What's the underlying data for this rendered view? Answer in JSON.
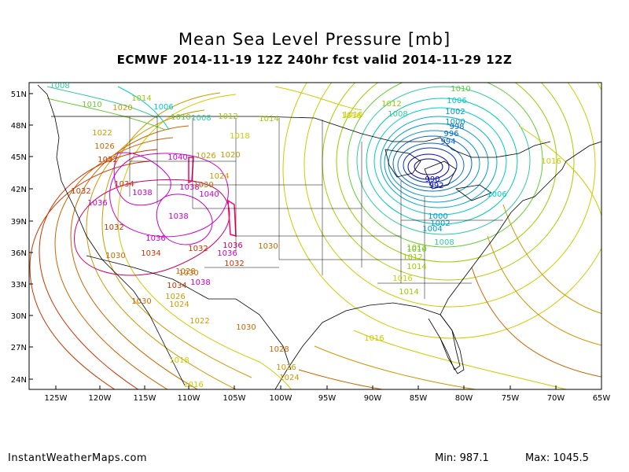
{
  "title": "Mean Sea Level Pressure [mb]",
  "subtitle": "ECMWF 2014-11-19 12Z 240hr fcst valid 2014-11-29 12Z",
  "footer": {
    "site": "InstantWeatherMaps.com",
    "min_label": "Min:",
    "min_value": "987.1",
    "max_label": "Max:",
    "max_value": "1045.5"
  },
  "axes": {
    "lat_ticks": [
      "51N",
      "48N",
      "45N",
      "42N",
      "39N",
      "36N",
      "33N",
      "30N",
      "27N",
      "24N"
    ],
    "lon_ticks": [
      "125W",
      "120W",
      "115W",
      "110W",
      "105W",
      "100W",
      "95W",
      "90W",
      "85W",
      "80W",
      "75W",
      "70W",
      "65W"
    ]
  },
  "contour_labels": [
    {
      "text": "1008",
      "color": "#33cc99"
    },
    {
      "text": "1010",
      "color": "#66cc33"
    },
    {
      "text": "1014",
      "color": "#99cc00"
    },
    {
      "text": "1020",
      "color": "#cc9900"
    },
    {
      "text": "1006",
      "color": "#00cccc"
    },
    {
      "text": "1008",
      "color": "#33cc99"
    },
    {
      "text": "1010",
      "color": "#66cc33"
    },
    {
      "text": "1012",
      "color": "#99cc00"
    },
    {
      "text": "1014",
      "color": "#99cc00"
    },
    {
      "text": "1016",
      "color": "#cccc00"
    },
    {
      "text": "1022",
      "color": "#cc9900"
    },
    {
      "text": "1026",
      "color": "#cc6600"
    },
    {
      "text": "1032",
      "color": "#cc3300"
    },
    {
      "text": "1040",
      "color": "#cc00cc"
    },
    {
      "text": "1026",
      "color": "#cc9900"
    },
    {
      "text": "1020",
      "color": "#cc9900"
    },
    {
      "text": "1018",
      "color": "#cccc00"
    },
    {
      "text": "1024",
      "color": "#cc9900"
    },
    {
      "text": "1034",
      "color": "#cc3300"
    },
    {
      "text": "1032",
      "color": "#cc3300"
    },
    {
      "text": "1038",
      "color": "#cc00cc"
    },
    {
      "text": "1036",
      "color": "#cc00cc"
    },
    {
      "text": "1038",
      "color": "#cc00cc"
    },
    {
      "text": "1030",
      "color": "#cc6600"
    },
    {
      "text": "1040",
      "color": "#cc00cc"
    },
    {
      "text": "1036",
      "color": "#cc0066"
    },
    {
      "text": "1032",
      "color": "#cc3300"
    },
    {
      "text": "1038",
      "color": "#cc00cc"
    },
    {
      "text": "1036",
      "color": "#cc00cc"
    },
    {
      "text": "1032",
      "color": "#cc3300"
    },
    {
      "text": "1030",
      "color": "#cc6600"
    },
    {
      "text": "1034",
      "color": "#cc3300"
    },
    {
      "text": "1030",
      "color": "#cc6600"
    },
    {
      "text": "1036",
      "color": "#cc00cc"
    },
    {
      "text": "1032",
      "color": "#cc3300"
    },
    {
      "text": "1030",
      "color": "#cc6600"
    },
    {
      "text": "1038",
      "color": "#cc00cc"
    },
    {
      "text": "1034",
      "color": "#cc3300"
    },
    {
      "text": "1028",
      "color": "#cc6600"
    },
    {
      "text": "1030",
      "color": "#cc6600"
    },
    {
      "text": "1026",
      "color": "#cc9900"
    },
    {
      "text": "1024",
      "color": "#cc9900"
    },
    {
      "text": "1022",
      "color": "#cc9900"
    },
    {
      "text": "1030",
      "color": "#cc6600"
    },
    {
      "text": "1028",
      "color": "#cc6600"
    },
    {
      "text": "1026",
      "color": "#cc9900"
    },
    {
      "text": "1024",
      "color": "#cc9900"
    },
    {
      "text": "1018",
      "color": "#cccc00"
    },
    {
      "text": "1016",
      "color": "#cccc00"
    },
    {
      "text": "1016",
      "color": "#cccc00"
    },
    {
      "text": "1016",
      "color": "#cccc00"
    },
    {
      "text": "1014",
      "color": "#99cc00"
    },
    {
      "text": "1012",
      "color": "#99cc00"
    },
    {
      "text": "1008",
      "color": "#33cc99"
    },
    {
      "text": "1012",
      "color": "#99cc00"
    },
    {
      "text": "1010",
      "color": "#66cc33"
    },
    {
      "text": "1006",
      "color": "#00cccc"
    },
    {
      "text": "1002",
      "color": "#0099cc"
    },
    {
      "text": "1000",
      "color": "#0099cc"
    },
    {
      "text": "998",
      "color": "#0066cc"
    },
    {
      "text": "996",
      "color": "#0066cc"
    },
    {
      "text": "994",
      "color": "#0066cc"
    },
    {
      "text": "990",
      "color": "#0000cc"
    },
    {
      "text": "992",
      "color": "#0000cc"
    },
    {
      "text": "1006",
      "color": "#00cccc"
    },
    {
      "text": "1016",
      "color": "#cccc00"
    },
    {
      "text": "1000",
      "color": "#0099cc"
    },
    {
      "text": "1002",
      "color": "#0099cc"
    },
    {
      "text": "1004",
      "color": "#0099cc"
    },
    {
      "text": "1008",
      "color": "#33cc99"
    },
    {
      "text": "1010",
      "color": "#66cc33"
    },
    {
      "text": "1012",
      "color": "#99cc00"
    },
    {
      "text": "1014",
      "color": "#99cc00"
    },
    {
      "text": "1016",
      "color": "#cccc00"
    }
  ]
}
